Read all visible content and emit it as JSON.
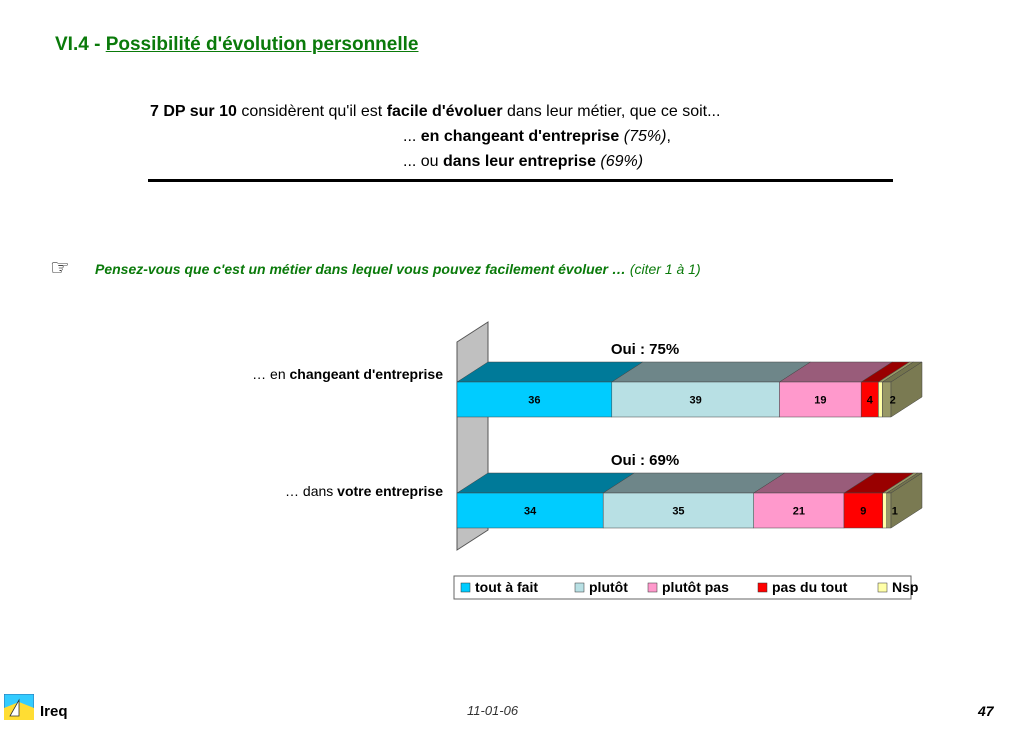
{
  "title": {
    "prefix": "VI.4 -",
    "text": "Possibilité d'évolution personnelle"
  },
  "summary": {
    "line1": {
      "b1": "7 DP sur 10",
      "t1": " considèrent qu'il est ",
      "b2": "facile d'évoluer",
      "t2": " dans leur métier, que ce soit..."
    },
    "line2": {
      "t1": "... ",
      "b1": "en changeant d'entreprise",
      "i1": " (75%)",
      "t2": ","
    },
    "line3": {
      "t1": "... ou ",
      "b1": "dans leur entreprise",
      "i1": " (69%)"
    }
  },
  "question": {
    "text": "Pensez-vous que c'est un métier dans lequel vous pouvez facilement évoluer …",
    "note": "(citer 1 à 1)"
  },
  "row_labels": [
    {
      "prefix": "… en ",
      "bold": "changeant d'entreprise"
    },
    {
      "prefix": "… dans  ",
      "bold": "votre entreprise"
    }
  ],
  "chart_data": {
    "type": "bar",
    "orientation": "horizontal",
    "stacked": true,
    "categories": [
      "… en changeant d'entreprise",
      "… dans  votre entreprise"
    ],
    "series": [
      {
        "name": "tout à fait",
        "values": [
          36,
          34
        ],
        "color": "#00ccff"
      },
      {
        "name": "plutôt",
        "values": [
          39,
          35
        ],
        "color": "#b8e0e4"
      },
      {
        "name": "plutôt pas",
        "values": [
          19,
          21
        ],
        "color": "#ff99cc"
      },
      {
        "name": "pas du tout",
        "values": [
          4,
          9
        ],
        "color": "#ff0000"
      },
      {
        "name": "Nsp",
        "values": [
          0,
          0
        ],
        "color": "#ffffa8"
      }
    ],
    "rest_labels": [
      "2",
      "1"
    ],
    "rest_color": "#999966",
    "annotations": [
      "Oui : 75%",
      "Oui : 69%"
    ],
    "legend_position": "bottom",
    "three_d": true,
    "grid": false
  },
  "footer": {
    "org": "Ireq",
    "date": "11-01-06",
    "page": "47"
  }
}
